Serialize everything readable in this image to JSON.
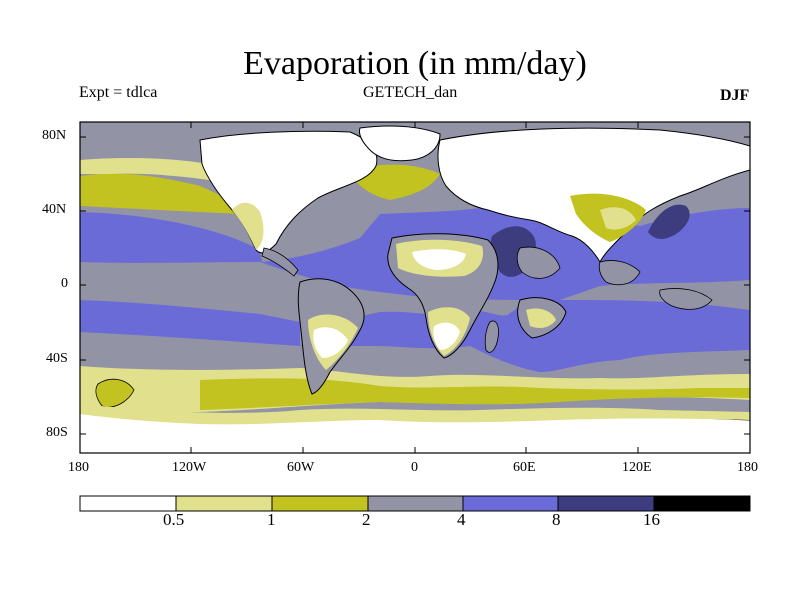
{
  "title": "Evaporation (in mm/day)",
  "left_label": "Expt = tdlca",
  "center_label": "GETECH_dan",
  "right_label": "DJF",
  "axes": {
    "lat_ticks": [
      "80N",
      "40N",
      "0",
      "40S",
      "80S"
    ],
    "lon_ticks": [
      "180",
      "120W",
      "60W",
      "0",
      "60E",
      "120E",
      "180"
    ]
  },
  "colorbar": {
    "levels": [
      "0.5",
      "1",
      "2",
      "4",
      "8",
      "16"
    ],
    "colors": [
      "#ffffff",
      "#e1e08c",
      "#c2c221",
      "#9393a6",
      "#6b6bd8",
      "#3c3c7e",
      "#000000"
    ]
  },
  "colors": {
    "ocean_mid": "#9393a6",
    "ocean_high": "#6b6bd8",
    "ocean_max": "#3c3c7e",
    "land_low": "#ffffff",
    "land_mid": "#e1e08c",
    "land_high": "#c2c221"
  }
}
